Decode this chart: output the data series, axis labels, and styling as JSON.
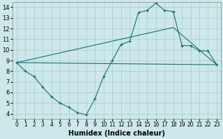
{
  "xlabel": "Humidex (Indice chaleur)",
  "xlim": [
    -0.5,
    23.5
  ],
  "ylim": [
    3.5,
    14.5
  ],
  "yticks": [
    4,
    5,
    6,
    7,
    8,
    9,
    10,
    11,
    12,
    13,
    14
  ],
  "xticks": [
    0,
    1,
    2,
    3,
    4,
    5,
    6,
    7,
    8,
    9,
    10,
    11,
    12,
    13,
    14,
    15,
    16,
    17,
    18,
    19,
    20,
    21,
    22,
    23
  ],
  "bg_color": "#cce8ea",
  "line_color": "#1a7070",
  "grid_color": "#aacbcc",
  "line1_x": [
    0,
    1,
    2,
    3,
    4,
    5,
    6,
    7,
    8,
    9,
    10,
    11,
    12,
    13,
    14,
    15,
    16,
    17,
    18,
    19,
    20,
    21,
    22,
    23
  ],
  "line1_y": [
    8.8,
    8.0,
    7.5,
    6.5,
    5.6,
    5.0,
    4.6,
    4.1,
    3.9,
    5.4,
    7.5,
    9.0,
    10.5,
    10.8,
    13.5,
    13.7,
    14.4,
    13.7,
    13.6,
    10.4,
    10.4,
    9.9,
    9.9,
    8.6
  ],
  "line2_x": [
    0,
    23
  ],
  "line2_y": [
    8.8,
    8.6
  ],
  "line3_x": [
    0,
    18,
    23
  ],
  "line3_y": [
    8.8,
    12.1,
    8.6
  ],
  "figsize": [
    3.2,
    2.0
  ],
  "dpi": 100
}
